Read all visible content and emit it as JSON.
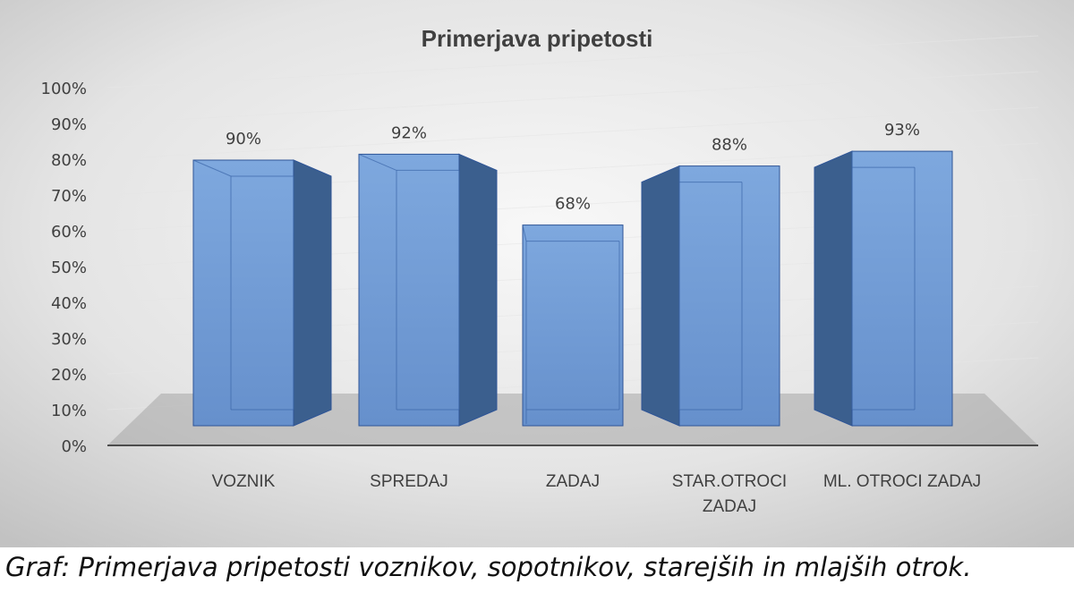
{
  "chart_data": {
    "type": "bar",
    "title": "Primerjava pripetosti",
    "categories": [
      [
        "VOZNIK"
      ],
      [
        "SPREDAJ"
      ],
      [
        "ZADAJ"
      ],
      [
        "STAR.OTROCI",
        "ZADAJ"
      ],
      [
        "ML. OTROCI ZADAJ"
      ]
    ],
    "values": [
      90,
      92,
      68,
      88,
      93
    ],
    "value_labels": [
      "90%",
      "92%",
      "68%",
      "88%",
      "93%"
    ],
    "y_ticks": [
      "0%",
      "10%",
      "20%",
      "30%",
      "40%",
      "50%",
      "60%",
      "70%",
      "80%",
      "90%",
      "100%"
    ],
    "ylim": [
      0,
      100
    ],
    "style": "3d-column",
    "grid": true,
    "legend": "none",
    "colors": {
      "bar_front": "#6f9bd6",
      "bar_side": "#3b5f8e",
      "bar_top": "#5b86c4",
      "bar_stroke": "#2f5597",
      "background_light": "#f7f7f7",
      "background_dark": "#c4c4c4",
      "floor": "#a6a6a6",
      "grid": "#e6e6e6",
      "text": "#404040"
    }
  },
  "caption": "Graf: Primerjava pripetosti voznikov, sopotnikov, starejših in mlajših otrok."
}
